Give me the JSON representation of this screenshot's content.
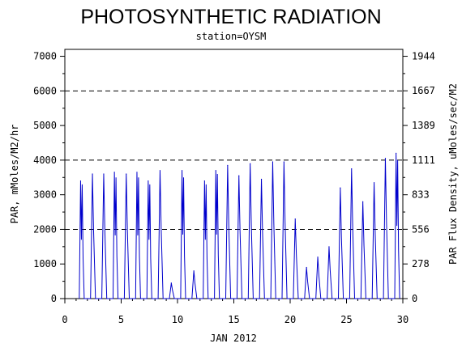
{
  "chart_data": {
    "type": "line",
    "title": "PHOTOSYNTHETIC RADIATION",
    "subtitle": "station=OYSM",
    "xlabel": "JAN 2012",
    "ylabel": "PAR, mMoles/M2/hr",
    "y2label": "PAR Flux Density, uMoles/sec/M2",
    "xlim": [
      0,
      30
    ],
    "ylim": [
      0,
      7200
    ],
    "xticks": [
      0,
      5,
      10,
      15,
      20,
      25,
      30
    ],
    "xtick_labels": [
      "0",
      "5",
      "10",
      "15",
      "20",
      "25",
      "30"
    ],
    "yticks": [
      0,
      1000,
      2000,
      3000,
      4000,
      5000,
      6000,
      7000
    ],
    "ytick_labels": [
      "0",
      "1000",
      "2000",
      "3000",
      "4000",
      "5000",
      "6000",
      "7000"
    ],
    "y2ticks": [
      0,
      278,
      556,
      833,
      1111,
      1389,
      1667,
      1944
    ],
    "y2tick_labels": [
      "0",
      "278",
      "556",
      "833",
      "1111",
      "1389",
      "1667",
      "1944"
    ],
    "reference_lines": [
      2000,
      4000,
      6000
    ],
    "grid": false,
    "series": [
      {
        "color": "#0000cc",
        "daily_peaks": [
          {
            "day": 1,
            "peaks": [
              3400,
              3300
            ]
          },
          {
            "day": 2,
            "peaks": [
              3600
            ]
          },
          {
            "day": 3,
            "peaks": [
              3600
            ]
          },
          {
            "day": 4,
            "peaks": [
              3650,
              3500
            ]
          },
          {
            "day": 5,
            "peaks": [
              3600
            ]
          },
          {
            "day": 6,
            "peaks": [
              3650,
              3500
            ]
          },
          {
            "day": 7,
            "peaks": [
              3400,
              3300
            ]
          },
          {
            "day": 8,
            "peaks": [
              3700
            ]
          },
          {
            "day": 9,
            "peaks": [
              450
            ]
          },
          {
            "day": 10,
            "peaks": [
              3700,
              3500
            ]
          },
          {
            "day": 11,
            "peaks": [
              800
            ]
          },
          {
            "day": 12,
            "peaks": [
              3400,
              3300
            ]
          },
          {
            "day": 13,
            "peaks": [
              3700,
              3600
            ]
          },
          {
            "day": 14,
            "peaks": [
              3850
            ]
          },
          {
            "day": 15,
            "peaks": [
              3550
            ]
          },
          {
            "day": 16,
            "peaks": [
              3900
            ]
          },
          {
            "day": 17,
            "peaks": [
              3450
            ]
          },
          {
            "day": 18,
            "peaks": [
              3950
            ]
          },
          {
            "day": 19,
            "peaks": [
              3950
            ]
          },
          {
            "day": 20,
            "peaks": [
              2300
            ]
          },
          {
            "day": 21,
            "peaks": [
              900
            ]
          },
          {
            "day": 22,
            "peaks": [
              1200
            ]
          },
          {
            "day": 23,
            "peaks": [
              1500
            ]
          },
          {
            "day": 24,
            "peaks": [
              3200
            ]
          },
          {
            "day": 25,
            "peaks": [
              3750
            ]
          },
          {
            "day": 26,
            "peaks": [
              2800
            ]
          },
          {
            "day": 27,
            "peaks": [
              3350
            ]
          },
          {
            "day": 28,
            "peaks": [
              4050
            ]
          },
          {
            "day": 29,
            "peaks": [
              4200,
              4000
            ]
          }
        ]
      }
    ]
  }
}
